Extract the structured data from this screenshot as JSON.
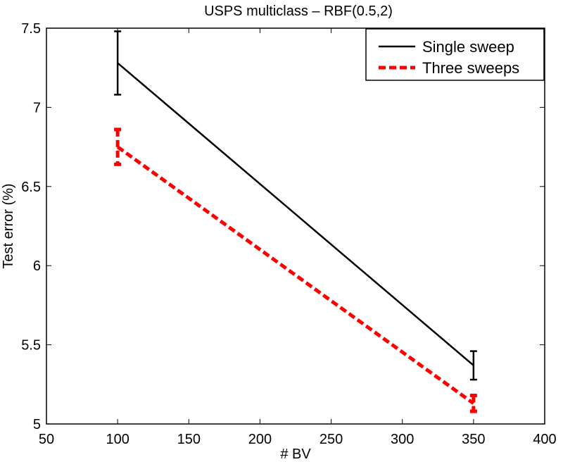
{
  "chart_data": {
    "type": "line",
    "title": "USPS  multiclass – RBF(0.5,2)",
    "xlabel": "# BV",
    "ylabel": "Test error (%)",
    "xlim": [
      50,
      400
    ],
    "ylim": [
      5,
      7.5
    ],
    "xticks": [
      50,
      100,
      150,
      200,
      250,
      300,
      350,
      400
    ],
    "yticks": [
      5,
      5.5,
      6,
      6.5,
      7,
      7.5
    ],
    "xtick_labels": [
      "50",
      "100",
      "150",
      "200",
      "250",
      "300",
      "350",
      "400"
    ],
    "ytick_labels": [
      "5",
      "5.5",
      "6",
      "6.5",
      "7",
      "7.5"
    ],
    "grid": false,
    "legend_position": "top-right",
    "series": [
      {
        "name": "Single sweep",
        "color": "#000000",
        "style": "solid",
        "x": [
          100,
          350
        ],
        "y": [
          7.28,
          5.37
        ],
        "err": [
          0.2,
          0.09
        ]
      },
      {
        "name": "Three sweeps",
        "color": "#ff0000",
        "style": "dashed",
        "x": [
          100,
          350
        ],
        "y": [
          6.75,
          5.13
        ],
        "err": [
          0.11,
          0.05
        ]
      }
    ]
  }
}
